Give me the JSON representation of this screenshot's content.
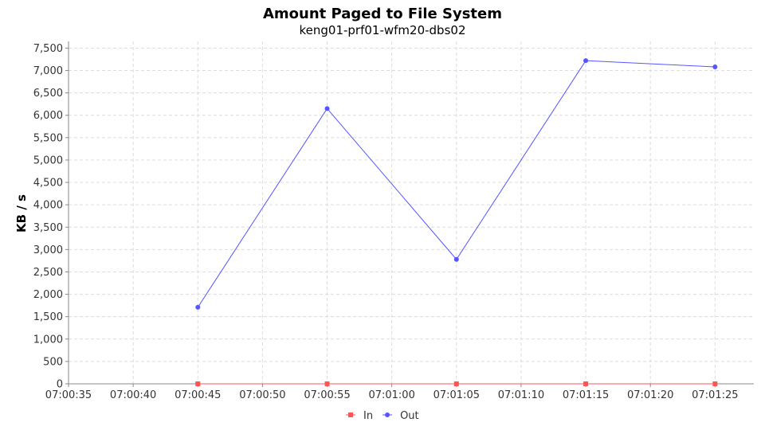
{
  "chart_data": {
    "type": "line",
    "title": "Amount Paged to File System",
    "subtitle": "keng01-prf01-wfm20-dbs02",
    "xlabel": "",
    "ylabel": "KB / s",
    "xlim": [
      "07:00:35",
      "07:01:28"
    ],
    "ylim": [
      0,
      7650
    ],
    "x_ticks": [
      "07:00:35",
      "07:00:40",
      "07:00:45",
      "07:00:50",
      "07:00:55",
      "07:01:00",
      "07:01:05",
      "07:01:10",
      "07:01:15",
      "07:01:20",
      "07:01:25"
    ],
    "y_ticks": [
      0,
      500,
      1000,
      1500,
      2000,
      2500,
      3000,
      3500,
      4000,
      4500,
      5000,
      5500,
      6000,
      6500,
      7000,
      7500
    ],
    "y_tick_labels": [
      "0",
      "500",
      "1,000",
      "1,500",
      "2,000",
      "2,500",
      "3,000",
      "3,500",
      "4,000",
      "4,500",
      "5,000",
      "5,500",
      "6,000",
      "6,500",
      "7,000",
      "7,500"
    ],
    "grid": true,
    "legend_position": "bottom-center",
    "series": [
      {
        "name": "In",
        "color": "#ff5555",
        "marker": "square",
        "points": [
          {
            "x": "07:00:45",
            "y": 0
          },
          {
            "x": "07:00:55",
            "y": 0
          },
          {
            "x": "07:01:05",
            "y": 0
          },
          {
            "x": "07:01:15",
            "y": 0
          },
          {
            "x": "07:01:25",
            "y": 0
          }
        ]
      },
      {
        "name": "Out",
        "color": "#5555ff",
        "marker": "circle",
        "points": [
          {
            "x": "07:00:45",
            "y": 1710
          },
          {
            "x": "07:00:55",
            "y": 6150
          },
          {
            "x": "07:01:05",
            "y": 2780
          },
          {
            "x": "07:01:15",
            "y": 7220
          },
          {
            "x": "07:01:25",
            "y": 7080
          }
        ]
      }
    ]
  }
}
